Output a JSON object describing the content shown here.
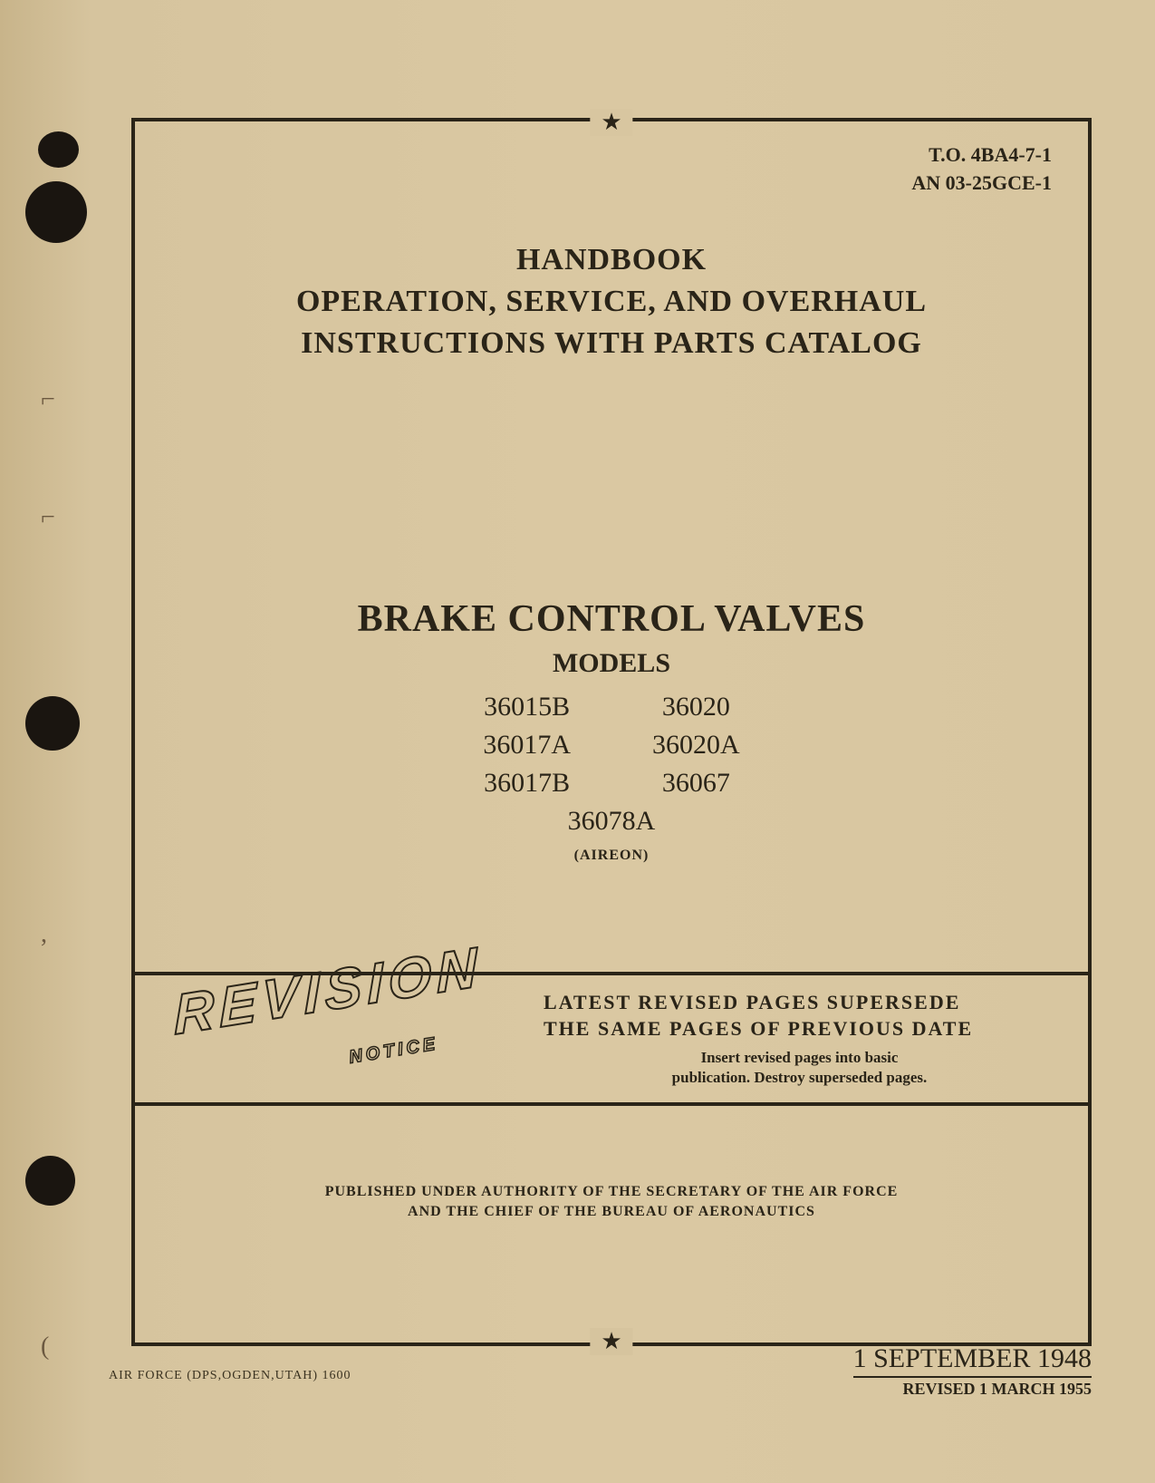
{
  "doc_numbers": {
    "to_number": "T.O. 4BA4-7-1",
    "an_number": "AN 03-25GCE-1"
  },
  "header": {
    "line1": "HANDBOOK",
    "line2": "OPERATION, SERVICE, AND OVERHAUL",
    "line3": "INSTRUCTIONS WITH PARTS CATALOG"
  },
  "subject": {
    "title": "BRAKE CONTROL VALVES",
    "models_label": "MODELS",
    "models_col1": [
      "36015B",
      "36017A",
      "36017B"
    ],
    "models_col2": [
      "36020",
      "36020A",
      "36067"
    ],
    "models_bottom": "36078A",
    "manufacturer": "(AIREON)"
  },
  "revision": {
    "word": "REVISION",
    "notice": "NOTICE",
    "heading_line1": "LATEST REVISED PAGES SUPERSEDE",
    "heading_line2": "THE SAME PAGES OF PREVIOUS DATE",
    "instruction_line1": "Insert revised pages into basic",
    "instruction_line2": "publication. Destroy superseded pages."
  },
  "authority": {
    "line1": "PUBLISHED UNDER AUTHORITY OF THE SECRETARY OF THE AIR FORCE",
    "line2": "AND THE CHIEF OF THE BUREAU OF AERONAUTICS"
  },
  "footer": {
    "left": "AIR FORCE (DPS,OGDEN,UTAH) 1600",
    "date": "1 SEPTEMBER 1948",
    "revised": "REVISED 1 MARCH 1955"
  },
  "style": {
    "page_bg": "#d4c19a",
    "text_color": "#2a2418",
    "border_color": "#2a2418"
  }
}
